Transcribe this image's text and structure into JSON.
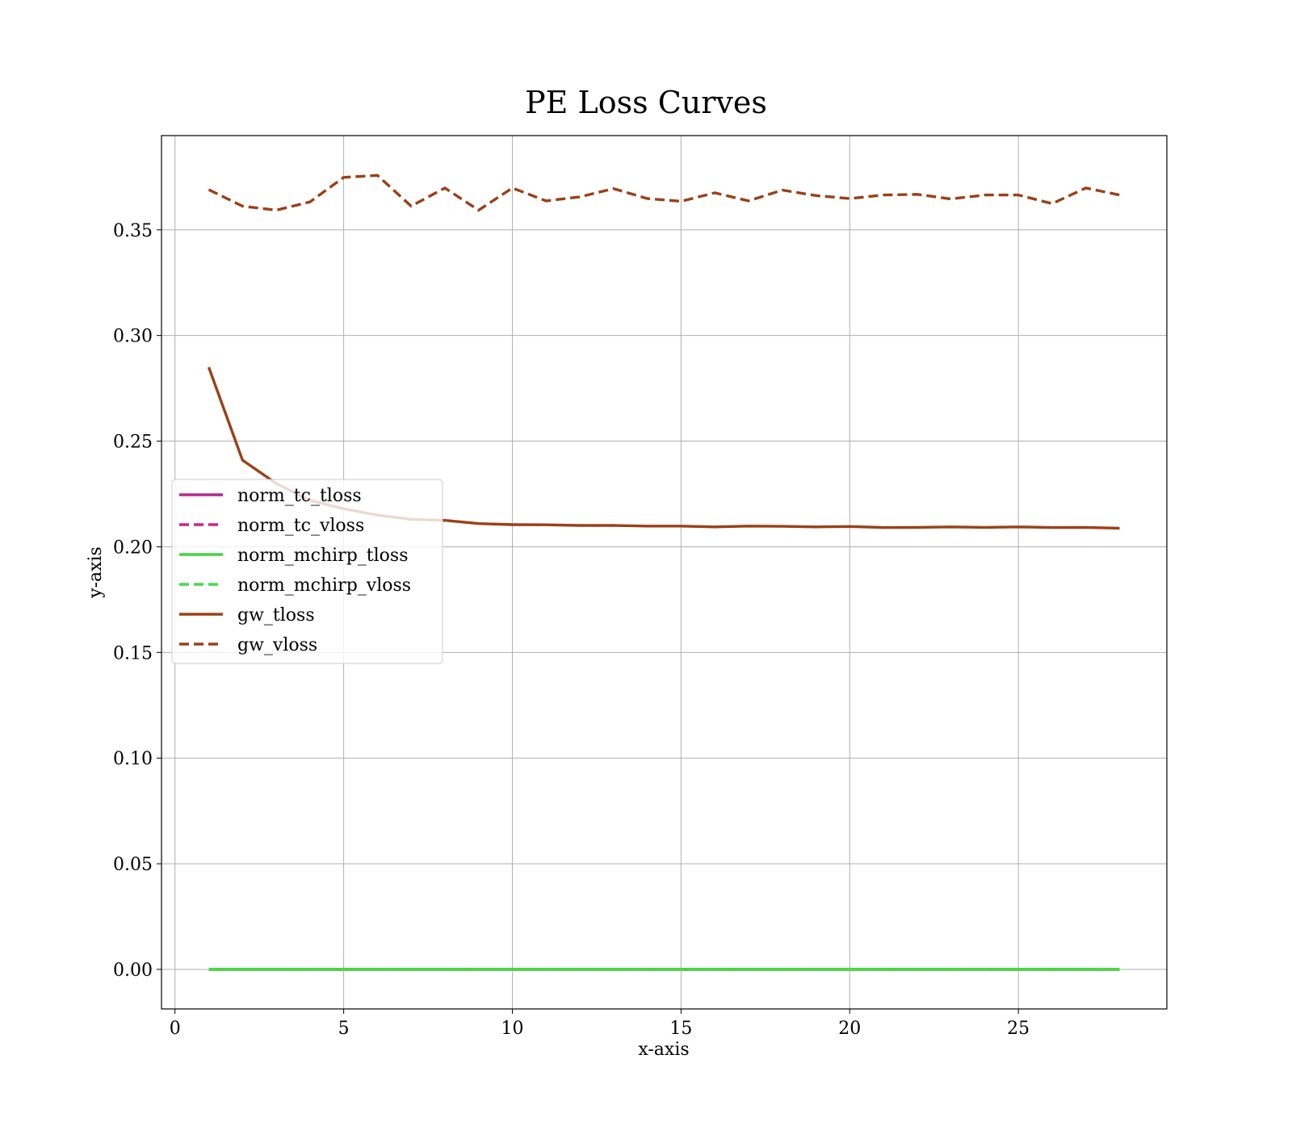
{
  "chart_data": {
    "type": "line",
    "title": "PE Loss Curves",
    "xlabel": "x-axis",
    "ylabel": "y-axis",
    "xlim": [
      -0.4,
      29.4
    ],
    "ylim": [
      -0.0187,
      0.3946
    ],
    "xticks": [
      0,
      5,
      10,
      15,
      20,
      25
    ],
    "yticks": [
      0.0,
      0.05,
      0.1,
      0.15,
      0.2,
      0.25,
      0.3,
      0.35
    ],
    "xtick_labels": [
      "0",
      "5",
      "10",
      "15",
      "20",
      "25"
    ],
    "ytick_labels": [
      "0.00",
      "0.05",
      "0.10",
      "0.15",
      "0.20",
      "0.25",
      "0.30",
      "0.35"
    ],
    "grid": true,
    "legend_position": "center-left",
    "x": [
      1,
      2,
      3,
      4,
      5,
      6,
      7,
      8,
      9,
      10,
      11,
      12,
      13,
      14,
      15,
      16,
      17,
      18,
      19,
      20,
      21,
      22,
      23,
      24,
      25,
      26,
      27,
      28
    ],
    "series": [
      {
        "name": "norm_tc_tloss",
        "color": "#b5268f",
        "style": "solid",
        "values": [
          0,
          0,
          0,
          0,
          0,
          0,
          0,
          0,
          0,
          0,
          0,
          0,
          0,
          0,
          0,
          0,
          0,
          0,
          0,
          0,
          0,
          0,
          0,
          0,
          0,
          0,
          0,
          0
        ]
      },
      {
        "name": "norm_tc_vloss",
        "color": "#c9268a",
        "style": "dashed",
        "values": [
          0,
          0,
          0,
          0,
          0,
          0,
          0,
          0,
          0,
          0,
          0,
          0,
          0,
          0,
          0,
          0,
          0,
          0,
          0,
          0,
          0,
          0,
          0,
          0,
          0,
          0,
          0,
          0
        ]
      },
      {
        "name": "norm_mchirp_tloss",
        "color": "#44d444",
        "style": "solid",
        "values": [
          0,
          0,
          0,
          0,
          0,
          0,
          0,
          0,
          0,
          0,
          0,
          0,
          0,
          0,
          0,
          0,
          0,
          0,
          0,
          0,
          0,
          0,
          0,
          0,
          0,
          0,
          0,
          0
        ]
      },
      {
        "name": "norm_mchirp_vloss",
        "color": "#44dd44",
        "style": "dashed",
        "values": [
          0,
          0,
          0,
          0,
          0,
          0,
          0,
          0,
          0,
          0,
          0,
          0,
          0,
          0,
          0,
          0,
          0,
          0,
          0,
          0,
          0,
          0,
          0,
          0,
          0,
          0,
          0,
          0
        ]
      },
      {
        "name": "gw_tloss",
        "color": "#9b4016",
        "style": "solid",
        "values": [
          0.285,
          0.241,
          0.23,
          0.222,
          0.218,
          0.215,
          0.213,
          0.2125,
          0.211,
          0.2105,
          0.2104,
          0.2101,
          0.2101,
          0.2098,
          0.2098,
          0.2094,
          0.2098,
          0.2097,
          0.2094,
          0.2096,
          0.2091,
          0.2092,
          0.2094,
          0.2092,
          0.2094,
          0.2091,
          0.2092,
          0.2088
        ]
      },
      {
        "name": "gw_vloss",
        "color": "#9b4016",
        "style": "dashed",
        "values": [
          0.369,
          0.3612,
          0.3593,
          0.3632,
          0.3748,
          0.3758,
          0.3612,
          0.3698,
          0.3593,
          0.3698,
          0.3637,
          0.3656,
          0.3695,
          0.3648,
          0.3635,
          0.3675,
          0.3637,
          0.3688,
          0.3662,
          0.3648,
          0.3665,
          0.3668,
          0.3646,
          0.3665,
          0.3665,
          0.3624,
          0.3698,
          0.3665
        ]
      }
    ]
  }
}
